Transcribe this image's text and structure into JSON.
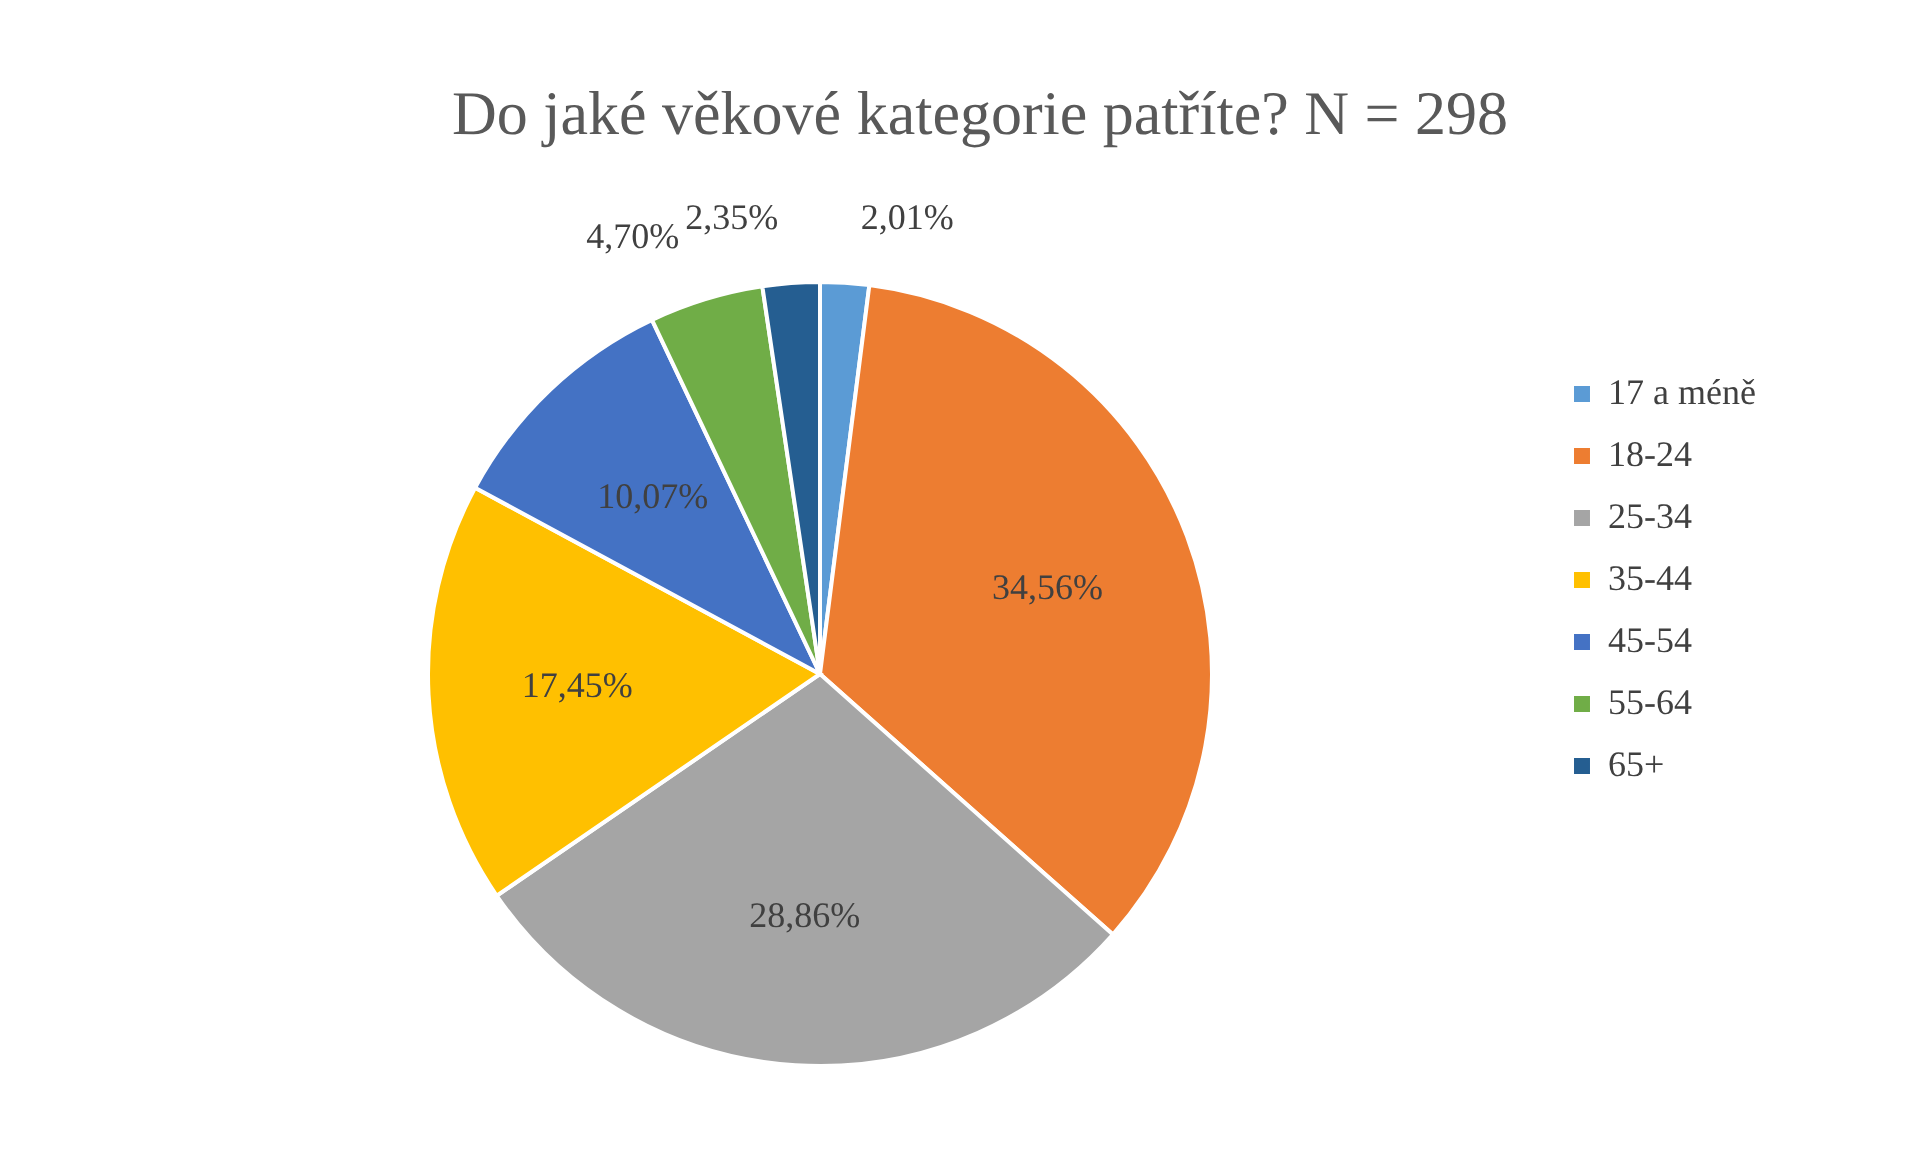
{
  "chart_data": {
    "type": "pie",
    "title": "Do jaké věkové kategorie patříte? N = 298",
    "categories": [
      "17 a méně",
      "18-24",
      "25-34",
      "35-44",
      "45-54",
      "55-64",
      "65+"
    ],
    "values": [
      2.01,
      34.56,
      28.86,
      17.45,
      10.07,
      4.7,
      2.35
    ],
    "colors": [
      "#5b9bd5",
      "#ed7d31",
      "#a5a5a5",
      "#ffc000",
      "#4472c4",
      "#70ad47",
      "#255e91"
    ],
    "value_labels": [
      "2,01%",
      "34,56%",
      "28,86%",
      "17,45%",
      "10,07%",
      "4,70%",
      "2,35%"
    ],
    "legend": "right"
  }
}
